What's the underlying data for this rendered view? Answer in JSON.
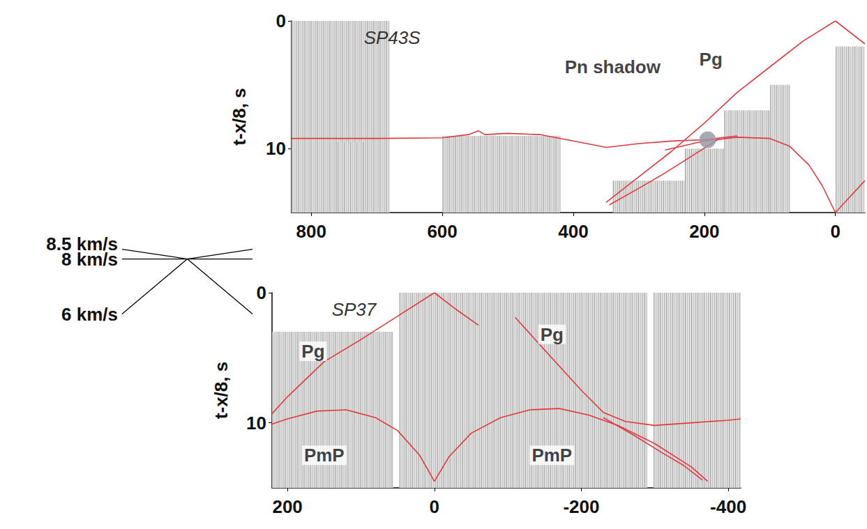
{
  "chart_data": [
    {
      "type": "line",
      "title": "SP43S",
      "y_label": "t-x/8, s",
      "xlim": [
        830,
        -45
      ],
      "ylim": [
        0,
        15
      ],
      "xticks": [
        800,
        600,
        400,
        200,
        0
      ],
      "yticks": [
        0,
        10
      ],
      "trace_zones": [
        [
          830,
          680,
          0,
          15
        ],
        [
          760,
          720,
          9.5,
          15
        ],
        [
          600,
          420,
          9,
          15
        ],
        [
          340,
          230,
          12.5,
          15
        ],
        [
          230,
          170,
          10,
          15
        ],
        [
          170,
          70,
          7,
          15
        ],
        [
          100,
          70,
          5,
          15
        ],
        [
          0,
          -45,
          2,
          15
        ]
      ],
      "series": [
        {
          "color": "#e2393f",
          "x": [
            0,
            50,
            100,
            150,
            200,
            250,
            300,
            350
          ],
          "values": [
            0,
            1.6,
            3.6,
            5.6,
            8.0,
            10.2,
            12.2,
            14.2
          ]
        },
        {
          "color": "#e2393f",
          "x": [
            180,
            220,
            260,
            300,
            345
          ],
          "values": [
            9.3,
            10.6,
            11.9,
            13.1,
            14.4
          ]
        },
        {
          "color": "#e2393f",
          "x": [
            830,
            700,
            600,
            560,
            545,
            535,
            500,
            450,
            400,
            350,
            300,
            250,
            200,
            150
          ],
          "values": [
            9.2,
            9.2,
            9.15,
            8.9,
            8.6,
            8.9,
            8.8,
            8.9,
            9.4,
            9.9,
            9.6,
            9.4,
            9.3,
            9.0
          ]
        },
        {
          "color": "#e2393f",
          "x": [
            260,
            200,
            150,
            100,
            70,
            40,
            20,
            0
          ],
          "values": [
            10.1,
            9.4,
            9.1,
            9.2,
            9.8,
            11.3,
            12.9,
            15
          ]
        },
        {
          "color": "#e2393f",
          "x": [
            0,
            -45
          ],
          "values": [
            0,
            1.8
          ]
        },
        {
          "color": "#e2393f",
          "x": [
            0,
            -45
          ],
          "values": [
            15,
            12.5
          ]
        }
      ],
      "annotations": [
        {
          "text": "Pn shadow",
          "x": 340,
          "y": 3.6
        },
        {
          "text": "Pg",
          "x": 190,
          "y": 3.0
        }
      ],
      "highlight_points": [
        {
          "x": 195,
          "y": 9.3,
          "color": "#9a9aa6"
        }
      ]
    },
    {
      "type": "line",
      "title": "SP37",
      "y_label": "t-x/8, s",
      "xlim": [
        221,
        -417
      ],
      "ylim": [
        0,
        15
      ],
      "xticks": [
        200,
        0,
        -200,
        -400
      ],
      "yticks": [
        0,
        10
      ],
      "trace_zones": [
        [
          221,
          56,
          3,
          15
        ],
        [
          48,
          -290,
          0,
          15
        ],
        [
          -298,
          -417,
          0,
          15
        ]
      ],
      "series": [
        {
          "color": "#e2393f",
          "x": [
            0,
            50,
            100,
            150,
            200,
            221
          ],
          "values": [
            0,
            1.8,
            3.6,
            5.3,
            8.0,
            9.3
          ]
        },
        {
          "color": "#e2393f",
          "x": [
            0,
            20,
            50,
            80,
            120,
            160,
            200,
            221
          ],
          "values": [
            14.5,
            12.5,
            10.6,
            9.6,
            9.0,
            9.1,
            9.7,
            10.1
          ]
        },
        {
          "color": "#e2393f",
          "x": [
            0,
            -30,
            -60
          ],
          "values": [
            0,
            1.3,
            2.5
          ]
        },
        {
          "color": "#e2393f",
          "x": [
            0,
            -20,
            -50,
            -90,
            -130,
            -170,
            -210,
            -250,
            -300,
            -350,
            -372
          ],
          "values": [
            14.5,
            12.6,
            10.8,
            9.6,
            9.0,
            8.9,
            9.4,
            10.2,
            11.6,
            13.4,
            14.5
          ]
        },
        {
          "color": "#e2393f",
          "x": [
            -110,
            -150,
            -200,
            -230,
            -260,
            -300,
            -350,
            -400,
            -417
          ],
          "values": [
            1.9,
            4.4,
            7.5,
            9.2,
            9.9,
            10.2,
            10.0,
            9.8,
            9.7
          ]
        },
        {
          "color": "#e2393f",
          "x": [
            -230,
            -270,
            -310,
            -340,
            -365
          ],
          "values": [
            9.6,
            10.9,
            12.3,
            13.3,
            14.4
          ]
        }
      ],
      "annotations": [
        {
          "text": "Pg",
          "x": 165,
          "y": 4.5
        },
        {
          "text": "Pg",
          "x": -160,
          "y": 3.2
        },
        {
          "text": "PmP",
          "x": 150,
          "y": 12.5
        },
        {
          "text": "PmP",
          "x": -160,
          "y": 12.5
        }
      ]
    },
    {
      "type": "line",
      "tick_labels": false,
      "reduction_velocity": 8,
      "xlim": [
        -100,
        100
      ],
      "ylim": [
        -1.4,
        4.4
      ],
      "color": "#000000",
      "series": [
        {
          "name": "8.5 km/s",
          "velocity": 8.5
        },
        {
          "name": "8 km/s",
          "velocity": 8
        },
        {
          "name": "6 km/s",
          "velocity": 6
        }
      ]
    }
  ]
}
